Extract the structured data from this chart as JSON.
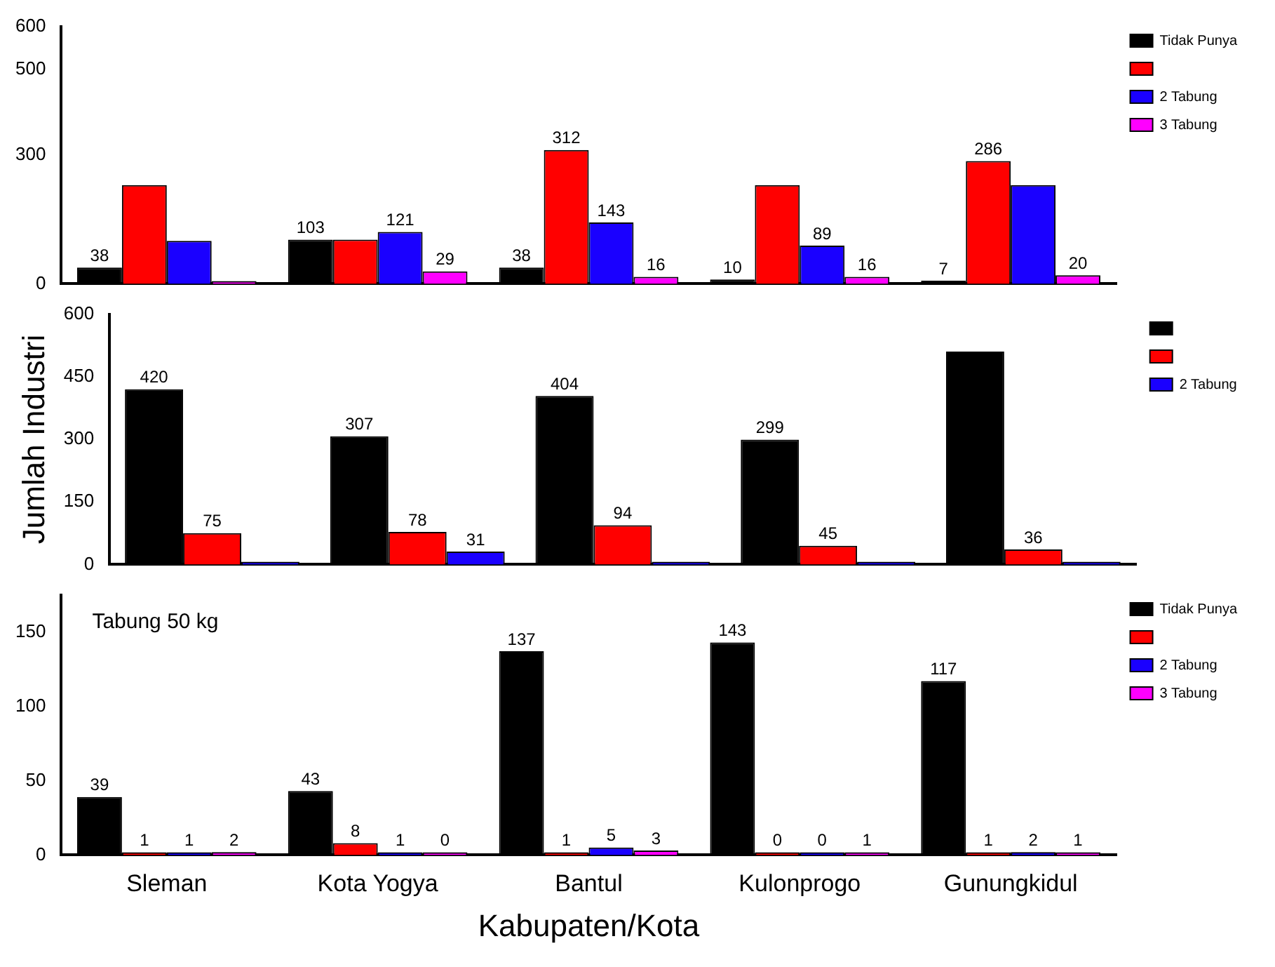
{
  "chart_data": [
    {
      "type": "bar",
      "categories": [
        null,
        null,
        null,
        null,
        null
      ],
      "ylim": [
        0,
        600
      ],
      "yticks": [
        0,
        300,
        500,
        600
      ],
      "grid": false,
      "legend": "right",
      "tick_labels": "y",
      "series": [
        {
          "name": "Tidak Punya",
          "color": "#000000",
          "values": [
            38,
            103,
            38,
            10,
            7
          ],
          "value_labels": [
            "38",
            "103",
            "38",
            "10",
            "7"
          ]
        },
        {
          "color": "#ff0000",
          "values": [
            230,
            103,
            312,
            230,
            286
          ],
          "value_labels": [
            null,
            null,
            "312",
            null,
            "286"
          ]
        },
        {
          "name": "2 Tabung",
          "color": "#1a00ff",
          "values": [
            100,
            121,
            143,
            89,
            230
          ],
          "value_labels": [
            null,
            "121",
            "143",
            "89",
            null
          ]
        },
        {
          "name": "3 Tabung",
          "color": "#ff00ff",
          "values": [
            0,
            29,
            16,
            16,
            20
          ],
          "value_labels": [
            null,
            "29",
            "16",
            "16",
            "20"
          ]
        }
      ]
    },
    {
      "type": "bar",
      "categories": [
        null,
        null,
        null,
        null,
        null
      ],
      "ylim": [
        0,
        600
      ],
      "yticks": [
        0,
        150,
        300,
        450,
        600
      ],
      "grid": false,
      "legend": "right",
      "tick_labels": "y",
      "ylabel": "Jumlah Industri",
      "series": [
        {
          "color": "#000000",
          "values": [
            420,
            307,
            404,
            299,
            510
          ],
          "value_labels": [
            "420",
            "307",
            "404",
            "299",
            null
          ]
        },
        {
          "color": "#ff0000",
          "values": [
            75,
            78,
            94,
            45,
            36
          ],
          "value_labels": [
            "75",
            "78",
            "94",
            "45",
            "36"
          ]
        },
        {
          "name": "2 Tabung",
          "color": "#1a00ff",
          "values": [
            0,
            31,
            0,
            0,
            0
          ],
          "value_labels": [
            null,
            "31",
            null,
            null,
            null
          ]
        }
      ]
    },
    {
      "type": "bar",
      "categories": [
        "Sleman",
        "Kota Yogya",
        "Bantul",
        "Kulonprogo",
        "Gunungkidul"
      ],
      "ylim": [
        0,
        175
      ],
      "yticks": [
        0,
        50,
        100,
        150
      ],
      "grid": false,
      "legend": "right",
      "xlabel": "Kabupaten/Kota",
      "annotations": [
        "Tabung 50 kg"
      ],
      "series": [
        {
          "name": "Tidak Punya",
          "color": "#000000",
          "values": [
            39,
            43,
            137,
            143,
            117
          ],
          "value_labels": [
            "39",
            "43",
            "137",
            "143",
            "117"
          ]
        },
        {
          "color": "#ff0000",
          "values": [
            1,
            8,
            1,
            0,
            1
          ],
          "value_labels": [
            "1",
            "8",
            "1",
            "0",
            "1"
          ]
        },
        {
          "name": "2 Tabung",
          "color": "#1a00ff",
          "values": [
            1,
            1,
            5,
            0,
            2
          ],
          "value_labels": [
            "1",
            "1",
            "5",
            "0",
            "2"
          ]
        },
        {
          "name": "3 Tabung",
          "color": "#ff00ff",
          "values": [
            2,
            0,
            3,
            1,
            1
          ],
          "value_labels": [
            "2",
            "0",
            "3",
            "1",
            "1"
          ]
        }
      ]
    }
  ]
}
